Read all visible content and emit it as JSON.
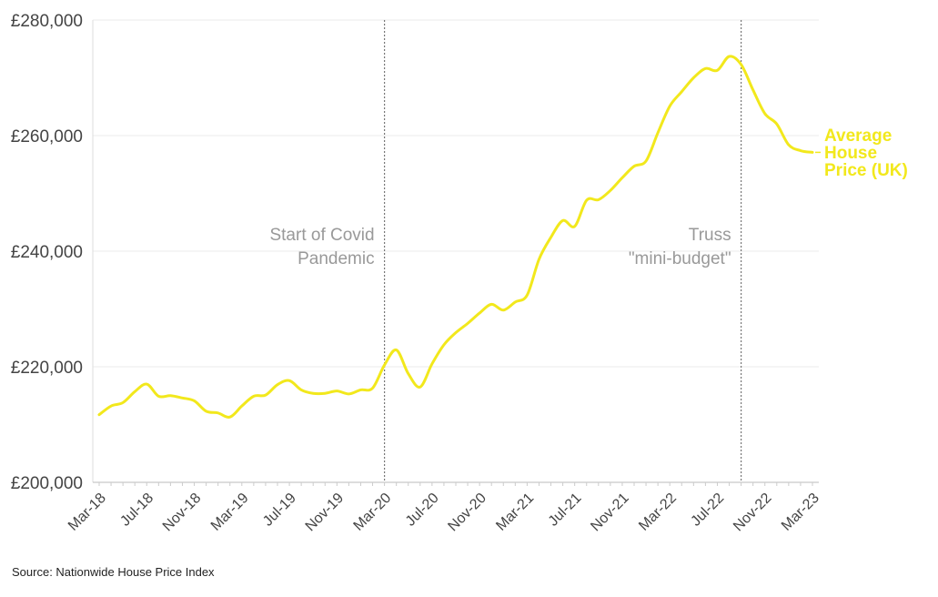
{
  "chart_data": {
    "type": "line",
    "title": "",
    "xlabel": "",
    "ylabel": "",
    "ylim": [
      200000,
      280000
    ],
    "yticks": [
      {
        "value": 200000,
        "label": "£200,000"
      },
      {
        "value": 220000,
        "label": "£220,000"
      },
      {
        "value": 240000,
        "label": "£240,000"
      },
      {
        "value": 260000,
        "label": "£260,000"
      },
      {
        "value": 280000,
        "label": "£280,000"
      }
    ],
    "xticks": [
      {
        "index": 0,
        "label": "Mar-18"
      },
      {
        "index": 4,
        "label": "Jul-18"
      },
      {
        "index": 8,
        "label": "Nov-18"
      },
      {
        "index": 12,
        "label": "Mar-19"
      },
      {
        "index": 16,
        "label": "Jul-19"
      },
      {
        "index": 20,
        "label": "Nov-19"
      },
      {
        "index": 24,
        "label": "Mar-20"
      },
      {
        "index": 28,
        "label": "Jul-20"
      },
      {
        "index": 32,
        "label": "Nov-20"
      },
      {
        "index": 36,
        "label": "Mar-21"
      },
      {
        "index": 40,
        "label": "Jul-21"
      },
      {
        "index": 44,
        "label": "Nov-21"
      },
      {
        "index": 48,
        "label": "Mar-22"
      },
      {
        "index": 52,
        "label": "Jul-22"
      },
      {
        "index": 56,
        "label": "Nov-22"
      },
      {
        "index": 60,
        "label": "Mar-23"
      }
    ],
    "series": [
      {
        "name": "Average House Price (UK)",
        "color": "#f2e81c",
        "values": [
          211700,
          213200,
          213800,
          215700,
          217000,
          214900,
          215000,
          214600,
          214100,
          212300,
          212000,
          211300,
          213200,
          214900,
          215100,
          216900,
          217600,
          216000,
          215400,
          215400,
          215800,
          215300,
          216000,
          216300,
          220300,
          222900,
          218800,
          216500,
          220500,
          223800,
          225900,
          227500,
          229300,
          230800,
          229800,
          231200,
          232400,
          238600,
          242400,
          245300,
          244300,
          248800,
          248900,
          250500,
          252700,
          254700,
          255600,
          260500,
          265100,
          267600,
          270000,
          271600,
          271300,
          273700,
          272300,
          267900,
          263800,
          262000,
          258400,
          257400,
          257100
        ]
      }
    ],
    "series_label_lines": [
      "Average",
      "House",
      "Price (UK)"
    ],
    "annotations": [
      {
        "index": 24,
        "lines": [
          "Start of Covid",
          "Pandemic"
        ]
      },
      {
        "index": 54,
        "lines": [
          "Truss",
          "\"mini-budget\""
        ]
      }
    ]
  },
  "source": "Source: Nationwide House Price Index"
}
